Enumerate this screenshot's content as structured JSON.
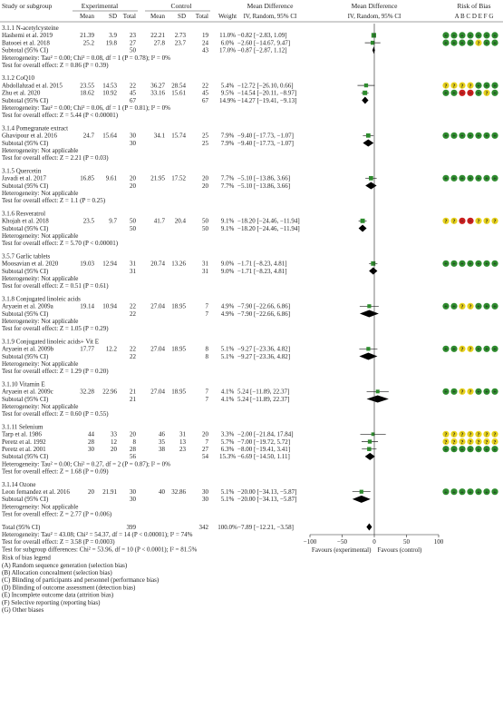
{
  "chart_data": {
    "type": "forest",
    "headers": {
      "study": "Study or subgroup",
      "experimental": "Experimental",
      "control": "Control",
      "mean": "Mean",
      "sd": "SD",
      "total": "Total",
      "weight": "Weight",
      "md": "Mean Difference",
      "md_sub": "IV, Random, 95% CI",
      "md_plot": "Mean Difference",
      "md_plot_sub": "IV, Random, 95% CI",
      "rob": "Risk of Bias",
      "rob_letters": "A B C D  E  F G"
    },
    "subgroups": [
      {
        "title": "3.1.1 N-acetylcysteine",
        "studies": [
          {
            "name": "Hashemi et al. 2019",
            "e_mean": "21.39",
            "e_sd": "3.9",
            "e_n": "23",
            "c_mean": "22.21",
            "c_sd": "2.73",
            "c_n": "19",
            "weight": "11.0%",
            "ci": "−0.82 [−2.83, 1.09]",
            "md": -0.82,
            "lo": -2.83,
            "hi": 1.09,
            "w": 11.0,
            "rob": [
              "g",
              "g",
              "g",
              "g",
              "g",
              "g",
              "g"
            ]
          },
          {
            "name": "Batooei et al. 2018",
            "e_mean": "25.2",
            "e_sd": "19.8",
            "e_n": "27",
            "c_mean": "27.8",
            "c_sd": "23.7",
            "c_n": "24",
            "weight": "6.0%",
            "ci": "−2.60 [−14.67, 9.47]",
            "md": -2.6,
            "lo": -14.67,
            "hi": 9.47,
            "w": 6.0,
            "rob": [
              "g",
              "g",
              "g",
              "g",
              "y",
              "g",
              "g"
            ]
          }
        ],
        "subtotal": {
          "label": "Subtotal (95% CI)",
          "e_n": "50",
          "c_n": "43",
          "weight": "17.0%",
          "ci": "−0.87 [−2.87, 1.12]",
          "md": -0.87,
          "lo": -2.87,
          "hi": 1.12
        },
        "het": "Heterogeneity: Tau² = 0.00; Chi² = 0.08, df = 1 (P = 0.78); I² = 0%",
        "test": "Test for overall effect: Z = 0.86 (P = 0.39)"
      },
      {
        "title": "3.1.2 CoQ10",
        "studies": [
          {
            "name": "Abdollahzad et al. 2015",
            "e_mean": "23.55",
            "e_sd": "14.53",
            "e_n": "22",
            "c_mean": "36.27",
            "c_sd": "28.54",
            "c_n": "22",
            "weight": "5.4%",
            "ci": "−12.72 [−26.10, 0.66]",
            "md": -12.72,
            "lo": -26.1,
            "hi": 0.66,
            "w": 5.4,
            "rob": [
              "y",
              "y",
              "y",
              "y",
              "g",
              "g",
              "g"
            ]
          },
          {
            "name": "Zhu et al. 2020",
            "e_mean": "18.62",
            "e_sd": "10.92",
            "e_n": "45",
            "c_mean": "33.16",
            "c_sd": "15.61",
            "c_n": "45",
            "weight": "9.5%",
            "ci": "−14.54 [−20.11, −8.97]",
            "md": -14.54,
            "lo": -20.11,
            "hi": -8.97,
            "w": 9.5,
            "rob": [
              "g",
              "g",
              "r",
              "r",
              "g",
              "y",
              "g"
            ]
          }
        ],
        "subtotal": {
          "label": "Subtotal (95% CI)",
          "e_n": "67",
          "c_n": "67",
          "weight": "14.9%",
          "ci": "−14.27 [−19.41, −9.13]",
          "md": -14.27,
          "lo": -19.41,
          "hi": -9.13
        },
        "het": "Heterogeneity: Tau² = 0.00; Chi² = 0.06, df = 1 (P = 0.81); I² = 0%",
        "test": "Test for overall effect: Z = 5.44 (P < 0.00001)"
      },
      {
        "title": "3.1.4 Pomegranate extract",
        "studies": [
          {
            "name": "Ghavipour et al. 2016",
            "e_mean": "24.7",
            "e_sd": "15.64",
            "e_n": "30",
            "c_mean": "34.1",
            "c_sd": "15.74",
            "c_n": "25",
            "weight": "7.9%",
            "ci": "−9.40 [−17.73, −1.07]",
            "md": -9.4,
            "lo": -17.73,
            "hi": -1.07,
            "w": 7.9,
            "rob": [
              "g",
              "g",
              "g",
              "g",
              "g",
              "g",
              "g"
            ]
          }
        ],
        "subtotal": {
          "label": "Subtotal (95% CI)",
          "e_n": "30",
          "c_n": "25",
          "weight": "7.9%",
          "ci": "−9.40 [−17.73, −1.07]",
          "md": -9.4,
          "lo": -17.73,
          "hi": -1.07
        },
        "het": "Heterogeneity: Not applicable",
        "test": "Test for overall effect: Z = 2.21 (P = 0.03)"
      },
      {
        "title": "3.1.5 Quercetin",
        "studies": [
          {
            "name": "Javadi et al. 2017",
            "e_mean": "16.85",
            "e_sd": "9.61",
            "e_n": "20",
            "c_mean": "21.95",
            "c_sd": "17.52",
            "c_n": "20",
            "weight": "7.7%",
            "ci": "−5.10 [−13.86, 3.66]",
            "md": -5.1,
            "lo": -13.86,
            "hi": 3.66,
            "w": 7.7,
            "rob": [
              "g",
              "g",
              "g",
              "g",
              "g",
              "g",
              "g"
            ]
          }
        ],
        "subtotal": {
          "label": "Subtotal (95% CI)",
          "e_n": "20",
          "c_n": "20",
          "weight": "7.7%",
          "ci": "−5.10 [−13.86, 3.66]",
          "md": -5.1,
          "lo": -13.86,
          "hi": 3.66
        },
        "het": "Heterogeneity: Not applicable",
        "test": "Test for overall effect: Z = 1.1 (P = 0.25)"
      },
      {
        "title": "3.1.6 Resveratrol",
        "studies": [
          {
            "name": "Khojah et al. 2018",
            "e_mean": "23.5",
            "e_sd": "9.7",
            "e_n": "50",
            "c_mean": "41.7",
            "c_sd": "20.4",
            "c_n": "50",
            "weight": "9.1%",
            "ci": "−18.20 [−24.46, −11.94]",
            "md": -18.2,
            "lo": -24.46,
            "hi": -11.94,
            "w": 9.1,
            "rob": [
              "y",
              "y",
              "r",
              "r",
              "y",
              "y",
              "y"
            ]
          }
        ],
        "subtotal": {
          "label": "Subtotal (95% CI)",
          "e_n": "50",
          "c_n": "50",
          "weight": "9.1%",
          "ci": "−18.20 [−24.46, −11.94]",
          "md": -18.2,
          "lo": -24.46,
          "hi": -11.94
        },
        "het": "Heterogeneity: Not applicable",
        "test": "Test for overall effect: Z = 5.70 (P < 0.00001)"
      },
      {
        "title": "3.5.7 Garlic tablets",
        "studies": [
          {
            "name": "Moosavian et al. 2020",
            "e_mean": "19.03",
            "e_sd": "12.94",
            "e_n": "31",
            "c_mean": "20.74",
            "c_sd": "13.26",
            "c_n": "31",
            "weight": "9.0%",
            "ci": "−1.71 [−8.23, 4.81]",
            "md": -1.71,
            "lo": -8.23,
            "hi": 4.81,
            "w": 9.0,
            "rob": [
              "g",
              "g",
              "g",
              "g",
              "g",
              "g",
              "g"
            ]
          }
        ],
        "subtotal": {
          "label": "Subtotal (95% CI)",
          "e_n": "31",
          "c_n": "31",
          "weight": "9.0%",
          "ci": "−1.71 [−8.23, 4.81]",
          "md": -1.71,
          "lo": -8.23,
          "hi": 4.81
        },
        "het": "Heterogeneity: Not applicable",
        "test": "Test for overall effect: Z = 0.51 (P = 0.61)"
      },
      {
        "title": "3.1.8 Conjugated linoleic acids",
        "studies": [
          {
            "name": "Aryaein et al. 2009a",
            "e_mean": "19.14",
            "e_sd": "10.94",
            "e_n": "22",
            "c_mean": "27.04",
            "c_sd": "18.95",
            "c_n": "7",
            "weight": "4.9%",
            "ci": "−7.90 [−22.66, 6.86]",
            "md": -7.9,
            "lo": -22.66,
            "hi": 6.86,
            "w": 4.9,
            "rob": [
              "g",
              "g",
              "y",
              "y",
              "g",
              "g",
              "g"
            ]
          }
        ],
        "subtotal": {
          "label": "Subtotal (95% CI)",
          "e_n": "22",
          "c_n": "7",
          "weight": "4.9%",
          "ci": "−7.90 [−22.66, 6.86]",
          "md": -7.9,
          "lo": -22.66,
          "hi": 6.86
        },
        "het": "Heterogeneity: Not applicable",
        "test": "Test for overall effect: Z = 1.05 (P = 0.29)"
      },
      {
        "title": "3.1.9 Conjugated linoleic acids+ Vit E",
        "studies": [
          {
            "name": "Aryaein et al. 2009b",
            "e_mean": "17.77",
            "e_sd": "12.2",
            "e_n": "22",
            "c_mean": "27.04",
            "c_sd": "18.95",
            "c_n": "8",
            "weight": "5.1%",
            "ci": "−9.27 [−23.36, 4.82]",
            "md": -9.27,
            "lo": -23.36,
            "hi": 4.82,
            "w": 5.1,
            "rob": [
              "g",
              "g",
              "y",
              "y",
              "g",
              "g",
              "g"
            ]
          }
        ],
        "subtotal": {
          "label": "Subtotal (95% CI)",
          "e_n": "22",
          "c_n": "8",
          "weight": "5.1%",
          "ci": "−9.27 [−23.36, 4.82]",
          "md": -9.27,
          "lo": -23.36,
          "hi": 4.82
        },
        "het": "Heterogeneity: Not applicable",
        "test": "Test for overall effect: Z = 1.29 (P = 0.20)"
      },
      {
        "title": "3.1.10 Vitamin E",
        "studies": [
          {
            "name": "Aryaein et al. 2009c",
            "e_mean": "32.28",
            "e_sd": "22.96",
            "e_n": "21",
            "c_mean": "27.04",
            "c_sd": "18.95",
            "c_n": "7",
            "weight": "4.1%",
            "ci": "5.24 [−11.89, 22.37]",
            "md": 5.24,
            "lo": -11.89,
            "hi": 22.37,
            "w": 4.1,
            "rob": [
              "g",
              "g",
              "y",
              "y",
              "g",
              "g",
              "g"
            ]
          }
        ],
        "subtotal": {
          "label": "Subtotal (95% CI)",
          "e_n": "21",
          "c_n": "7",
          "weight": "4.1%",
          "ci": "5.24 [−11.89, 22.37]",
          "md": 5.24,
          "lo": -11.89,
          "hi": 22.37
        },
        "het": "Heterogeneity: Not applicable",
        "test": "Test for overall effect: Z = 0.60 (P = 0.55)"
      },
      {
        "title": "3.1.11 Selenium",
        "studies": [
          {
            "name": "Tarp et al. 1986",
            "e_mean": "44",
            "e_sd": "33",
            "e_n": "20",
            "c_mean": "46",
            "c_sd": "31",
            "c_n": "20",
            "weight": "3.3%",
            "ci": "−2.00 [−21.84, 17.84]",
            "md": -2.0,
            "lo": -21.84,
            "hi": 17.84,
            "w": 3.3,
            "rob": [
              "y",
              "y",
              "y",
              "y",
              "y",
              "y",
              "y"
            ]
          },
          {
            "name": "Peretz et al. 1992",
            "e_mean": "28",
            "e_sd": "12",
            "e_n": "8",
            "c_mean": "35",
            "c_sd": "13",
            "c_n": "7",
            "weight": "5.7%",
            "ci": "−7.00 [−19.72, 5.72]",
            "md": -7.0,
            "lo": -19.72,
            "hi": 5.72,
            "w": 5.7,
            "rob": [
              "y",
              "y",
              "y",
              "y",
              "y",
              "y",
              "y"
            ]
          },
          {
            "name": "Peretz et al. 2001",
            "e_mean": "30",
            "e_sd": "20",
            "e_n": "28",
            "c_mean": "38",
            "c_sd": "23",
            "c_n": "27",
            "weight": "6.3%",
            "ci": "−8.00 [−19.41, 3.41]",
            "md": -8.0,
            "lo": -19.41,
            "hi": 3.41,
            "w": 6.3,
            "rob": [
              "g",
              "g",
              "g",
              "g",
              "g",
              "g",
              "g"
            ]
          }
        ],
        "subtotal": {
          "label": "Subtotal (95% CI)",
          "e_n": "56",
          "c_n": "54",
          "weight": "15.3%",
          "ci": "−6.69 [−14.50, 1.11]",
          "md": -6.69,
          "lo": -14.5,
          "hi": 1.11
        },
        "het": "Heterogeneity: Tau² = 0.00; Chi² = 0.27, df = 2 (P = 0.87); I² = 0%",
        "test": "Test for overall effect: Z = 1.68 (P = 0.09)"
      },
      {
        "title": "3.1.14 Ozone",
        "studies": [
          {
            "name": "Leon fernandez et al. 2016",
            "e_mean": "20",
            "e_sd": "21.91",
            "e_n": "30",
            "c_mean": "40",
            "c_sd": "32.86",
            "c_n": "30",
            "weight": "5.1%",
            "ci": "−20.00 [−34.13, −5.87]",
            "md": -20.0,
            "lo": -34.13,
            "hi": -5.87,
            "w": 5.1,
            "rob": [
              "g",
              "g",
              "g",
              "g",
              "g",
              "g",
              "g"
            ]
          }
        ],
        "subtotal": {
          "label": "Subtotal (95% CI)",
          "e_n": "30",
          "c_n": "30",
          "weight": "5.1%",
          "ci": "−20.00 [−34.13, −5.87]",
          "md": -20.0,
          "lo": -34.13,
          "hi": -5.87
        },
        "het": "Heterogeneity: Not applicable",
        "test": "Test for overall effect: Z = 2.77 (P = 0.006)"
      }
    ],
    "total": {
      "label": "Total (95% CI)",
      "e_n": "399",
      "c_n": "342",
      "weight": "100.0%",
      "ci": "−7.89 [−12.21, −3.58]",
      "md": -7.89,
      "lo": -12.21,
      "hi": -3.58,
      "het": "Heterogeneity: Tau² = 43.08; Chi² = 54.37, df = 14 (P < 0.00001); I² = 74%",
      "test": "Test for overall effect: Z = 3.58 (P = 0.0003)",
      "subgroup_diff": "Test for subgroup differences: Chi² = 53.96, df = 10 (P < 0.0001); I² = 81.5%"
    },
    "axis": {
      "xlim": [
        -100,
        100
      ],
      "ticks": [
        -100,
        -50,
        0,
        50,
        100
      ],
      "tick_labels": [
        "−100",
        "−50",
        "0",
        "50",
        "100"
      ],
      "favours_left": "Favours (experimental)",
      "favours_right": "Favours (control)"
    },
    "rob_symbols": {
      "g": "+",
      "y": "?",
      "r": "−"
    },
    "colors": {
      "low": "#2e8b2e",
      "unclear": "#e8d21c",
      "high": "#c81e1e",
      "study_marker": "#2e8b2e",
      "diamond": "#000000"
    },
    "legend": {
      "title": "Risk of bias legend",
      "items": [
        "(A) Random sequence generation (selection bias)",
        "(B) Allocation concealment (selection bias)",
        "(C) Blinding of participants and personnel (performance bias)",
        "(D) Blinding of outcome assessment (detection bias)",
        "(E) Incomplete outcome data (attrition bias)",
        "(F) Selective reporting (reporting bias)",
        "(G) Other biases"
      ]
    }
  }
}
